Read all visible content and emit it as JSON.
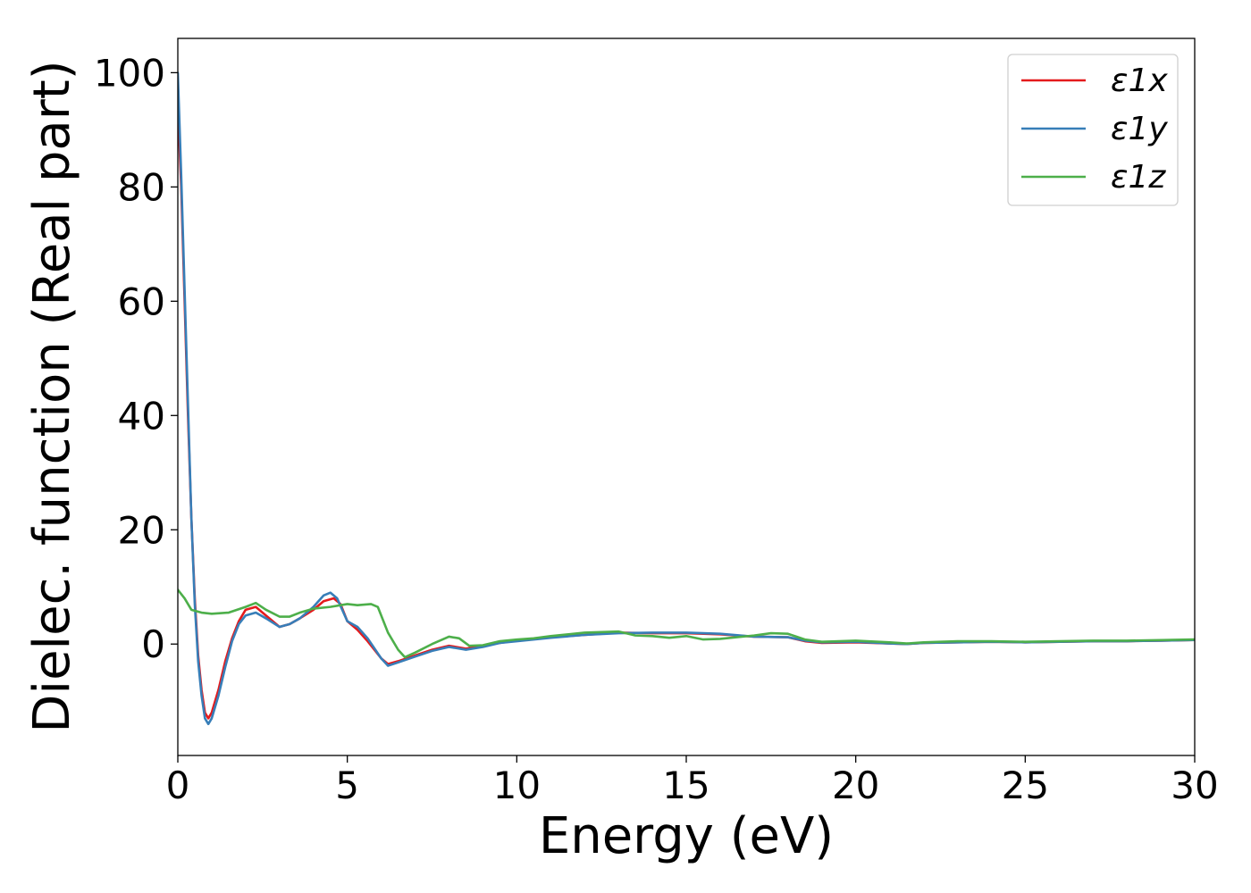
{
  "chart_data": {
    "type": "line",
    "title": "",
    "xlabel": "Energy (eV)",
    "ylabel": "Dielec. function (Real part)",
    "xlim": [
      0,
      30
    ],
    "ylim": [
      -19.5,
      106
    ],
    "xticks": [
      0,
      5,
      10,
      15,
      20,
      25,
      30
    ],
    "yticks": [
      0,
      20,
      40,
      60,
      80,
      100
    ],
    "grid": false,
    "legend_position": "top-right",
    "series": [
      {
        "name": "ε1x",
        "color": "#e41a1c",
        "points": [
          [
            0,
            94
          ],
          [
            0.1,
            80
          ],
          [
            0.2,
            60
          ],
          [
            0.3,
            40
          ],
          [
            0.4,
            22
          ],
          [
            0.5,
            8
          ],
          [
            0.6,
            -2
          ],
          [
            0.7,
            -8
          ],
          [
            0.8,
            -12
          ],
          [
            0.9,
            -13
          ],
          [
            1.0,
            -12
          ],
          [
            1.2,
            -8
          ],
          [
            1.4,
            -3
          ],
          [
            1.6,
            1
          ],
          [
            1.8,
            4
          ],
          [
            2.0,
            6
          ],
          [
            2.3,
            6.5
          ],
          [
            2.6,
            5
          ],
          [
            3.0,
            3
          ],
          [
            3.3,
            3.5
          ],
          [
            3.6,
            4.5
          ],
          [
            4.0,
            6
          ],
          [
            4.3,
            7.5
          ],
          [
            4.6,
            8
          ],
          [
            4.8,
            7
          ],
          [
            5.0,
            4
          ],
          [
            5.3,
            2.5
          ],
          [
            5.6,
            0.5
          ],
          [
            6.0,
            -2.5
          ],
          [
            6.2,
            -3.5
          ],
          [
            6.5,
            -3
          ],
          [
            7.0,
            -2
          ],
          [
            7.5,
            -1
          ],
          [
            8.0,
            -0.3
          ],
          [
            8.5,
            -0.8
          ],
          [
            9.0,
            -0.3
          ],
          [
            9.5,
            0.2
          ],
          [
            10,
            0.6
          ],
          [
            11,
            1.2
          ],
          [
            12,
            1.6
          ],
          [
            13,
            2
          ],
          [
            14,
            1.9
          ],
          [
            15,
            1.9
          ],
          [
            16,
            1.7
          ],
          [
            17,
            1.3
          ],
          [
            18,
            1.2
          ],
          [
            18.5,
            0.5
          ],
          [
            19,
            0.2
          ],
          [
            20,
            0.3
          ],
          [
            21,
            0.1
          ],
          [
            21.5,
            0
          ],
          [
            22,
            0.2
          ],
          [
            23,
            0.3
          ],
          [
            24,
            0.4
          ],
          [
            25,
            0.3
          ],
          [
            26,
            0.4
          ],
          [
            27,
            0.5
          ],
          [
            28,
            0.5
          ],
          [
            29,
            0.6
          ],
          [
            30,
            0.7
          ]
        ]
      },
      {
        "name": "ε1y",
        "color": "#377eb8",
        "points": [
          [
            0,
            100
          ],
          [
            0.1,
            82
          ],
          [
            0.2,
            62
          ],
          [
            0.3,
            42
          ],
          [
            0.4,
            22
          ],
          [
            0.5,
            7
          ],
          [
            0.6,
            -3
          ],
          [
            0.7,
            -9
          ],
          [
            0.8,
            -13
          ],
          [
            0.9,
            -14
          ],
          [
            1.0,
            -13
          ],
          [
            1.2,
            -9
          ],
          [
            1.4,
            -4
          ],
          [
            1.6,
            0.5
          ],
          [
            1.8,
            3.5
          ],
          [
            2.0,
            5
          ],
          [
            2.3,
            5.5
          ],
          [
            2.6,
            4.5
          ],
          [
            3.0,
            3
          ],
          [
            3.3,
            3.5
          ],
          [
            3.6,
            4.5
          ],
          [
            4.0,
            6.5
          ],
          [
            4.3,
            8.5
          ],
          [
            4.5,
            9
          ],
          [
            4.7,
            8
          ],
          [
            5.0,
            4
          ],
          [
            5.3,
            3
          ],
          [
            5.6,
            1
          ],
          [
            6.0,
            -2.5
          ],
          [
            6.2,
            -3.8
          ],
          [
            6.5,
            -3.2
          ],
          [
            7.0,
            -2.2
          ],
          [
            7.5,
            -1.2
          ],
          [
            8.0,
            -0.5
          ],
          [
            8.5,
            -1
          ],
          [
            9.0,
            -0.5
          ],
          [
            9.5,
            0.2
          ],
          [
            10,
            0.5
          ],
          [
            11,
            1.1
          ],
          [
            12,
            1.6
          ],
          [
            13,
            1.9
          ],
          [
            14,
            2
          ],
          [
            15,
            2
          ],
          [
            16,
            1.8
          ],
          [
            17,
            1.3
          ],
          [
            18,
            1.2
          ],
          [
            18.5,
            0.6
          ],
          [
            19,
            0.3
          ],
          [
            20,
            0.4
          ],
          [
            21,
            0.1
          ],
          [
            21.5,
            0
          ],
          [
            22,
            0.2
          ],
          [
            23,
            0.3
          ],
          [
            24,
            0.4
          ],
          [
            25,
            0.3
          ],
          [
            26,
            0.4
          ],
          [
            27,
            0.5
          ],
          [
            28,
            0.5
          ],
          [
            29,
            0.6
          ],
          [
            30,
            0.7
          ]
        ]
      },
      {
        "name": "ε1z",
        "color": "#4daf4a",
        "points": [
          [
            0,
            9.5
          ],
          [
            0.2,
            8
          ],
          [
            0.4,
            6
          ],
          [
            0.7,
            5.5
          ],
          [
            1.0,
            5.3
          ],
          [
            1.5,
            5.5
          ],
          [
            2.0,
            6.5
          ],
          [
            2.3,
            7.2
          ],
          [
            2.6,
            6
          ],
          [
            3.0,
            4.8
          ],
          [
            3.3,
            4.8
          ],
          [
            3.6,
            5.5
          ],
          [
            4.0,
            6.2
          ],
          [
            4.5,
            6.5
          ],
          [
            5.0,
            7
          ],
          [
            5.3,
            6.8
          ],
          [
            5.7,
            7
          ],
          [
            5.9,
            6.5
          ],
          [
            6.2,
            2
          ],
          [
            6.5,
            -1
          ],
          [
            6.7,
            -2.3
          ],
          [
            7.0,
            -1.5
          ],
          [
            7.5,
            0
          ],
          [
            8.0,
            1.3
          ],
          [
            8.3,
            1
          ],
          [
            8.6,
            -0.3
          ],
          [
            9.0,
            -0.2
          ],
          [
            9.5,
            0.5
          ],
          [
            10,
            0.8
          ],
          [
            10.5,
            1
          ],
          [
            11,
            1.4
          ],
          [
            12,
            2
          ],
          [
            13,
            2.2
          ],
          [
            13.5,
            1.5
          ],
          [
            14,
            1.4
          ],
          [
            14.5,
            1.1
          ],
          [
            15,
            1.4
          ],
          [
            15.5,
            0.8
          ],
          [
            16,
            0.9
          ],
          [
            17,
            1.5
          ],
          [
            17.5,
            1.9
          ],
          [
            18,
            1.8
          ],
          [
            18.5,
            0.8
          ],
          [
            19,
            0.4
          ],
          [
            20,
            0.6
          ],
          [
            21,
            0.3
          ],
          [
            21.5,
            0.1
          ],
          [
            22,
            0.3
          ],
          [
            23,
            0.5
          ],
          [
            24,
            0.5
          ],
          [
            25,
            0.4
          ],
          [
            26,
            0.5
          ],
          [
            27,
            0.6
          ],
          [
            28,
            0.6
          ],
          [
            29,
            0.7
          ],
          [
            30,
            0.8
          ]
        ]
      }
    ]
  }
}
